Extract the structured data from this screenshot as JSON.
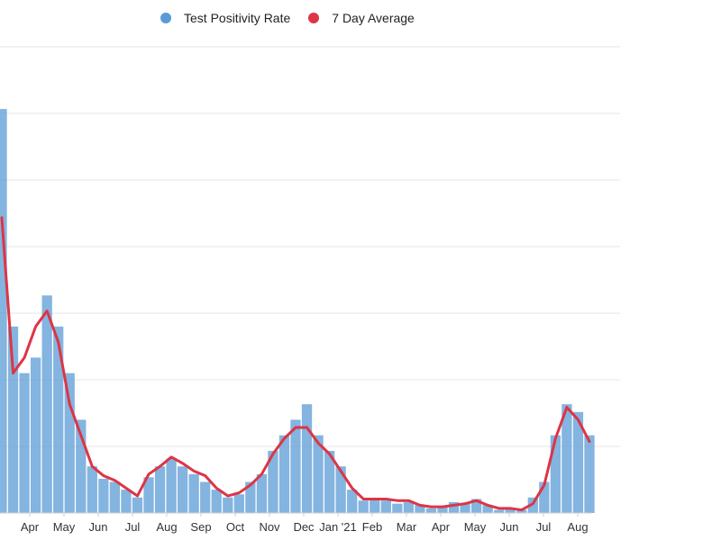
{
  "legend": {
    "items": [
      {
        "label": "Test Positivity Rate",
        "color": "#5b9bd5"
      },
      {
        "label": "7 Day Average",
        "color": "#dc3545"
      }
    ]
  },
  "chart_data": {
    "type": "bar",
    "title": "",
    "xlabel": "",
    "ylabel": "",
    "ylim": [
      0,
      30
    ],
    "grid": true,
    "legend_position": "top",
    "x_tick_labels": [
      "Apr",
      "May",
      "Jun",
      "Jul",
      "Aug",
      "Sep",
      "Oct",
      "Nov",
      "Dec",
      "Jan '21",
      "Feb",
      "Mar",
      "Apr",
      "May",
      "Jun",
      "Jul",
      "Aug"
    ],
    "series": [
      {
        "name": "Test Positivity Rate",
        "type": "bar",
        "color": "#5b9bd5",
        "values": [
          26,
          12,
          9,
          10,
          14,
          12,
          9,
          6,
          3,
          2.2,
          2.0,
          1.5,
          1.0,
          2.3,
          3.0,
          3.5,
          3.0,
          2.5,
          2.0,
          1.5,
          1.0,
          1.2,
          2.0,
          2.5,
          4.0,
          5.0,
          6.0,
          7.0,
          5.0,
          4.0,
          3.0,
          1.5,
          0.8,
          0.9,
          0.8,
          0.6,
          0.7,
          0.5,
          0.3,
          0.4,
          0.7,
          0.6,
          0.9,
          0.5,
          0.2,
          0.3,
          0.2,
          1.0,
          2.0,
          5.0,
          7.0,
          6.5,
          5.0
        ]
      },
      {
        "name": "7 Day Average",
        "type": "line",
        "color": "#dc3545",
        "values": [
          19,
          9,
          10,
          12,
          13,
          11,
          7,
          5,
          3,
          2.4,
          2.1,
          1.6,
          1.1,
          2.5,
          3.0,
          3.6,
          3.2,
          2.7,
          2.4,
          1.6,
          1.1,
          1.3,
          1.8,
          2.5,
          3.8,
          4.8,
          5.5,
          5.5,
          4.5,
          3.8,
          2.7,
          1.6,
          0.9,
          0.9,
          0.9,
          0.8,
          0.8,
          0.5,
          0.4,
          0.4,
          0.5,
          0.6,
          0.8,
          0.5,
          0.3,
          0.3,
          0.2,
          0.6,
          1.8,
          4.8,
          6.8,
          6.0,
          4.6
        ]
      }
    ]
  }
}
